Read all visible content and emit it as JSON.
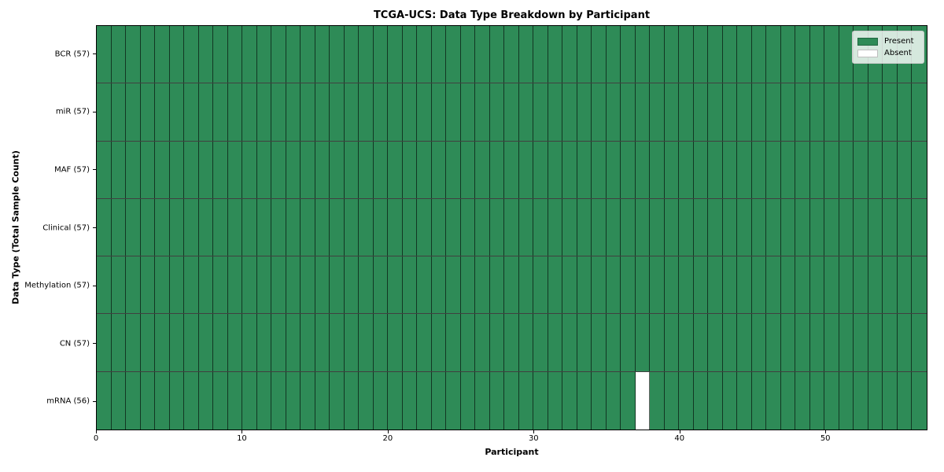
{
  "title": "TCGA-UCS: Data Type Breakdown by Participant",
  "legend": {
    "items": [
      {
        "label": "Present",
        "color": "#2e8b57"
      },
      {
        "label": "Absent",
        "color": "#ffffff"
      }
    ]
  },
  "chart_data": {
    "type": "heatmap",
    "title": "TCGA-UCS: Data Type Breakdown by Participant",
    "xlabel": "Participant",
    "ylabel": "Data Type (Total Sample Count)",
    "x_range": [
      0,
      57
    ],
    "n_participants": 57,
    "x_ticks": [
      0,
      10,
      20,
      30,
      40,
      50
    ],
    "rows": [
      {
        "label": "BCR (57)",
        "data_type": "BCR",
        "present_count": 57,
        "absent_participants": []
      },
      {
        "label": "miR (57)",
        "data_type": "miR",
        "present_count": 57,
        "absent_participants": []
      },
      {
        "label": "MAF (57)",
        "data_type": "MAF",
        "present_count": 57,
        "absent_participants": []
      },
      {
        "label": "Clinical (57)",
        "data_type": "Clinical",
        "present_count": 57,
        "absent_participants": []
      },
      {
        "label": "Methylation (57)",
        "data_type": "Methylation",
        "present_count": 57,
        "absent_participants": []
      },
      {
        "label": "CN (57)",
        "data_type": "CN",
        "present_count": 57,
        "absent_participants": []
      },
      {
        "label": "mRNA (56)",
        "data_type": "mRNA",
        "present_count": 56,
        "absent_participants": [
          37
        ]
      }
    ],
    "colors": {
      "present": "#2e8b57",
      "absent": "#ffffff",
      "cell_edge": "rgba(0,0,0,0.6)"
    },
    "legend_entries": [
      "Present",
      "Absent"
    ],
    "legend_position": "upper right",
    "grid": false
  }
}
